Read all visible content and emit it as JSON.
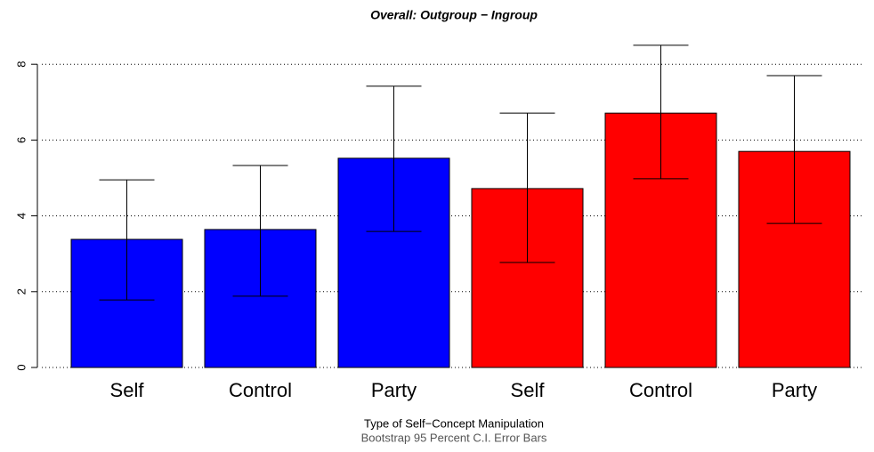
{
  "chart_data": {
    "type": "bar",
    "title": "Overall: Outgroup − Ingroup",
    "x_label": "Type of Self−Concept Manipulation",
    "subtitle": "Bootstrap 95 Percent C.I. Error Bars",
    "categories": [
      "Self",
      "Control",
      "Party",
      "Self",
      "Control",
      "Party"
    ],
    "values": [
      3.38,
      3.64,
      5.52,
      4.72,
      6.71,
      5.7
    ],
    "ci_lower": [
      1.78,
      1.88,
      3.59,
      2.77,
      4.98,
      3.8
    ],
    "ci_upper": [
      4.95,
      5.33,
      7.42,
      6.71,
      8.5,
      7.7
    ],
    "colors": [
      "#0000ff",
      "#0000ff",
      "#0000ff",
      "#ff0000",
      "#ff0000",
      "#ff0000"
    ],
    "ylim": [
      0,
      8.6
    ],
    "yticks": [
      0,
      2,
      4,
      6,
      8
    ],
    "grid": true
  }
}
